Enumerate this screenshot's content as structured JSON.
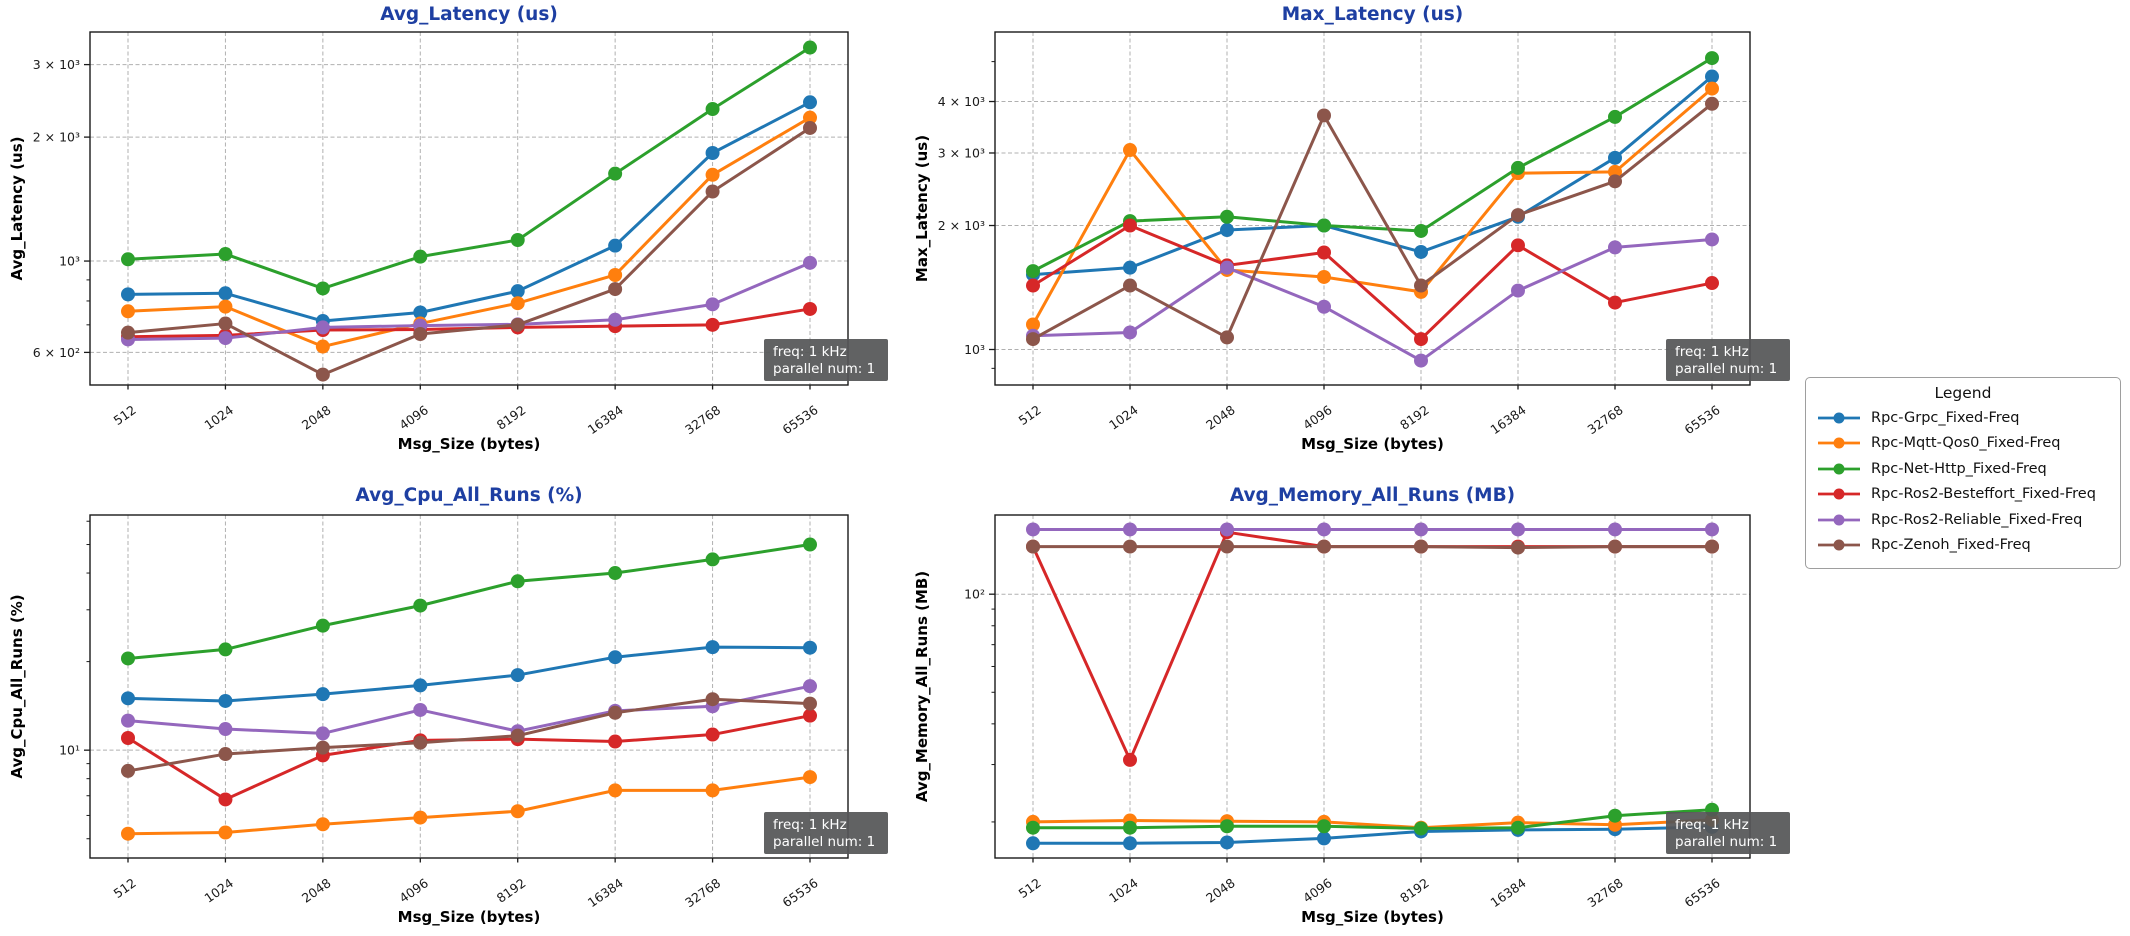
{
  "figure": {
    "background": "#ffffff",
    "title_color": "#1e3fa2",
    "grid_color": "#b0b0b0",
    "spine_color": "#1a1a1a",
    "annotation": {
      "lines": [
        "freq: 1 kHz",
        "parallel num: 1"
      ],
      "bg": "#555657",
      "fg": "#ffffff"
    },
    "legend": {
      "title": "Legend",
      "entries": [
        {
          "label": "Rpc-Grpc_Fixed-Freq",
          "color": "#1f77b4"
        },
        {
          "label": "Rpc-Mqtt-Qos0_Fixed-Freq",
          "color": "#ff7f0e"
        },
        {
          "label": "Rpc-Net-Http_Fixed-Freq",
          "color": "#2ca02c"
        },
        {
          "label": "Rpc-Ros2-Besteffort_Fixed-Freq",
          "color": "#d62728"
        },
        {
          "label": "Rpc-Ros2-Reliable_Fixed-Freq",
          "color": "#9467bd"
        },
        {
          "label": "Rpc-Zenoh_Fixed-Freq",
          "color": "#8c564b"
        }
      ]
    }
  },
  "chart_data": [
    {
      "id": "avg-latency",
      "type": "line",
      "title": "Avg_Latency (us)",
      "xlabel": "Msg_Size (bytes)",
      "ylabel": "Avg_Latency (us)",
      "yscale": "log",
      "ylim": [
        500,
        3600
      ],
      "x_categories": [
        "512",
        "1024",
        "2048",
        "4096",
        "8192",
        "16384",
        "32768",
        "65536"
      ],
      "yticks": [
        {
          "value": 600,
          "label": "6 × 10²"
        },
        {
          "value": 1000,
          "label": "10³"
        },
        {
          "value": 2000,
          "label": "2 × 10³"
        },
        {
          "value": 3000,
          "label": "3 × 10³"
        }
      ],
      "series": [
        {
          "name": "Rpc-Grpc_Fixed-Freq",
          "color": "#1f77b4",
          "values": [
            830,
            835,
            715,
            750,
            845,
            1090,
            1830,
            2430
          ]
        },
        {
          "name": "Rpc-Mqtt-Qos0_Fixed-Freq",
          "color": "#ff7f0e",
          "values": [
            755,
            775,
            620,
            705,
            790,
            925,
            1620,
            2230
          ]
        },
        {
          "name": "Rpc-Net-Http_Fixed-Freq",
          "color": "#2ca02c",
          "values": [
            1010,
            1040,
            858,
            1025,
            1125,
            1630,
            2340,
            3300
          ]
        },
        {
          "name": "Rpc-Ros2-Besteffort_Fixed-Freq",
          "color": "#d62728",
          "values": [
            655,
            660,
            680,
            682,
            690,
            695,
            700,
            765
          ]
        },
        {
          "name": "Rpc-Ros2-Reliable_Fixed-Freq",
          "color": "#9467bd",
          "values": [
            645,
            650,
            690,
            697,
            702,
            720,
            785,
            990
          ]
        },
        {
          "name": "Rpc-Zenoh_Fixed-Freq",
          "color": "#8c564b",
          "values": [
            670,
            705,
            530,
            665,
            700,
            855,
            1475,
            2105
          ]
        }
      ]
    },
    {
      "id": "max-latency",
      "type": "line",
      "title": "Max_Latency (us)",
      "xlabel": "Msg_Size (bytes)",
      "ylabel": "Max_Latency (us)",
      "yscale": "log",
      "ylim": [
        820,
        5900
      ],
      "x_categories": [
        "512",
        "1024",
        "2048",
        "4096",
        "8192",
        "16384",
        "32768",
        "65536"
      ],
      "yticks": [
        {
          "value": 1000,
          "label": "10³"
        },
        {
          "value": 2000,
          "label": "2 × 10³"
        },
        {
          "value": 3000,
          "label": "3 × 10³"
        },
        {
          "value": 4000,
          "label": "4 × 10³"
        }
      ],
      "series": [
        {
          "name": "Rpc-Grpc_Fixed-Freq",
          "color": "#1f77b4",
          "values": [
            1520,
            1580,
            1950,
            2000,
            1725,
            2100,
            2920,
            4600
          ]
        },
        {
          "name": "Rpc-Mqtt-Qos0_Fixed-Freq",
          "color": "#ff7f0e",
          "values": [
            1150,
            3050,
            1560,
            1500,
            1380,
            2680,
            2700,
            4300
          ]
        },
        {
          "name": "Rpc-Net-Http_Fixed-Freq",
          "color": "#2ca02c",
          "values": [
            1550,
            2050,
            2100,
            2000,
            1940,
            2760,
            3670,
            5100
          ]
        },
        {
          "name": "Rpc-Ros2-Besteffort_Fixed-Freq",
          "color": "#d62728",
          "values": [
            1430,
            2000,
            1600,
            1720,
            1060,
            1790,
            1300,
            1450
          ]
        },
        {
          "name": "Rpc-Ros2-Reliable_Fixed-Freq",
          "color": "#9467bd",
          "values": [
            1080,
            1100,
            1580,
            1270,
            940,
            1390,
            1770,
            1850
          ]
        },
        {
          "name": "Rpc-Zenoh_Fixed-Freq",
          "color": "#8c564b",
          "values": [
            1060,
            1430,
            1070,
            3700,
            1430,
            2120,
            2560,
            3950
          ]
        }
      ]
    },
    {
      "id": "avg-cpu",
      "type": "line",
      "title": "Avg_Cpu_All_Runs (%)",
      "xlabel": "Msg_Size (bytes)",
      "ylabel": "Avg_Cpu_All_Runs (%)",
      "yscale": "log",
      "ylim": [
        4.3,
        63
      ],
      "x_categories": [
        "512",
        "1024",
        "2048",
        "4096",
        "8192",
        "16384",
        "32768",
        "65536"
      ],
      "yticks": [
        {
          "value": 10,
          "label": "10¹"
        }
      ],
      "series": [
        {
          "name": "Rpc-Grpc_Fixed-Freq",
          "color": "#1f77b4",
          "values": [
            15.0,
            14.7,
            15.5,
            16.6,
            18.0,
            20.7,
            22.4,
            22.3
          ]
        },
        {
          "name": "Rpc-Mqtt-Qos0_Fixed-Freq",
          "color": "#ff7f0e",
          "values": [
            5.2,
            5.25,
            5.6,
            5.9,
            6.2,
            7.3,
            7.3,
            8.1
          ]
        },
        {
          "name": "Rpc-Net-Http_Fixed-Freq",
          "color": "#2ca02c",
          "values": [
            20.5,
            22.0,
            26.5,
            31.0,
            37.5,
            40.0,
            44.5,
            50.0
          ]
        },
        {
          "name": "Rpc-Ros2-Besteffort_Fixed-Freq",
          "color": "#d62728",
          "values": [
            11.0,
            6.8,
            9.6,
            10.8,
            10.9,
            10.7,
            11.3,
            13.1
          ]
        },
        {
          "name": "Rpc-Ros2-Reliable_Fixed-Freq",
          "color": "#9467bd",
          "values": [
            12.6,
            11.8,
            11.4,
            13.7,
            11.6,
            13.6,
            14.1,
            16.5
          ]
        },
        {
          "name": "Rpc-Zenoh_Fixed-Freq",
          "color": "#8c564b",
          "values": [
            8.5,
            9.7,
            10.2,
            10.6,
            11.2,
            13.4,
            14.9,
            14.4
          ]
        }
      ]
    },
    {
      "id": "avg-memory",
      "type": "line",
      "title": "Avg_Memory_All_Runs (MB)",
      "xlabel": "Msg_Size (bytes)",
      "ylabel": "Avg_Memory_All_Runs (MB)",
      "yscale": "log",
      "ylim": [
        15.5,
        175
      ],
      "x_categories": [
        "512",
        "1024",
        "2048",
        "4096",
        "8192",
        "16384",
        "32768",
        "65536"
      ],
      "yticks": [
        {
          "value": 100,
          "label": "10²"
        }
      ],
      "series": [
        {
          "name": "Rpc-Grpc_Fixed-Freq",
          "color": "#1f77b4",
          "values": [
            17.2,
            17.2,
            17.3,
            17.8,
            18.7,
            18.9,
            19.0,
            19.3
          ]
        },
        {
          "name": "Rpc-Mqtt-Qos0_Fixed-Freq",
          "color": "#ff7f0e",
          "values": [
            20.0,
            20.2,
            20.1,
            20.0,
            19.2,
            19.9,
            19.6,
            20.3
          ]
        },
        {
          "name": "Rpc-Net-Http_Fixed-Freq",
          "color": "#2ca02c",
          "values": [
            19.2,
            19.2,
            19.4,
            19.4,
            19.1,
            19.2,
            20.9,
            21.8
          ]
        },
        {
          "name": "Rpc-Ros2-Besteffort_Fixed-Freq",
          "color": "#d62728",
          "values": [
            140,
            31,
            155,
            140,
            140,
            140,
            140,
            140
          ]
        },
        {
          "name": "Rpc-Ros2-Reliable_Fixed-Freq",
          "color": "#9467bd",
          "values": [
            158,
            158,
            158,
            158,
            158,
            158,
            158,
            158
          ]
        },
        {
          "name": "Rpc-Zenoh_Fixed-Freq",
          "color": "#8c564b",
          "values": [
            140,
            140,
            140,
            140,
            140,
            139,
            140,
            140
          ]
        }
      ]
    }
  ]
}
